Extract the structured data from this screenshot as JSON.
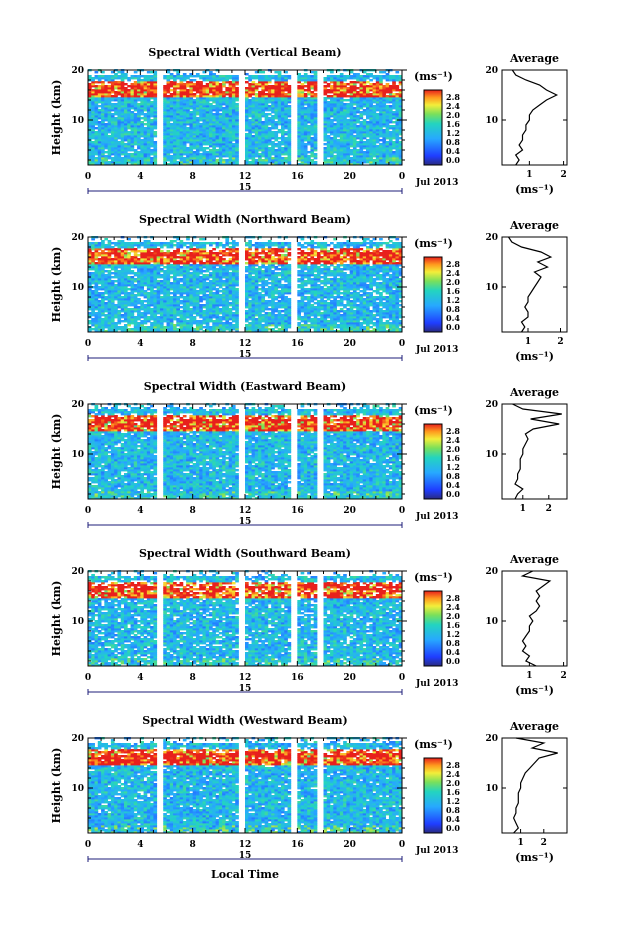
{
  "chart_data": [
    {
      "type": "heatmap",
      "title": "Spectral Width (Vertical Beam)",
      "ylabel": "Height (km)",
      "yticks": [
        "20",
        "10"
      ],
      "xticks": [
        "0",
        "4",
        "8",
        "12",
        "16",
        "20",
        "0"
      ],
      "date_day": "15",
      "date_label": "Jul 2013",
      "xlim": [
        0,
        24
      ],
      "ylim": [
        1,
        20
      ],
      "gaps": [
        [
          5.2,
          5.8
        ],
        [
          11.6,
          12.1
        ],
        [
          15.5,
          15.9
        ],
        [
          17.6,
          17.9
        ]
      ],
      "colorbar": {
        "unit": "(ms⁻¹)",
        "ticks": [
          "2.8",
          "2.4",
          "2.0",
          "1.6",
          "1.2",
          "0.8",
          "0.4",
          "0.0"
        ],
        "range": [
          0,
          2.8
        ]
      },
      "average": {
        "title": "Average",
        "ylabel": "(ms⁻¹)",
        "xticks": [
          "1",
          "2"
        ],
        "yticks": [
          "20",
          "10"
        ],
        "xlim": [
          0.2,
          2.1
        ],
        "height": [
          1,
          2,
          3,
          4,
          5,
          6,
          7,
          8,
          9,
          10,
          11,
          12,
          13,
          14,
          15,
          16,
          17,
          18,
          19,
          20
        ],
        "value": [
          0.6,
          0.7,
          0.6,
          0.8,
          0.7,
          0.8,
          0.8,
          0.9,
          0.9,
          1.0,
          1.0,
          1.1,
          1.3,
          1.5,
          1.8,
          1.5,
          1.3,
          0.9,
          0.6,
          0.5
        ]
      }
    },
    {
      "type": "heatmap",
      "title": "Spectral Width (Northward Beam)",
      "ylabel": "Height (km)",
      "yticks": [
        "20",
        "10"
      ],
      "xticks": [
        "0",
        "4",
        "8",
        "12",
        "16",
        "20",
        "0"
      ],
      "date_day": "15",
      "date_label": "Jul 2013",
      "xlim": [
        0,
        24
      ],
      "ylim": [
        1,
        20
      ],
      "gaps": [
        [
          11.6,
          12.1
        ],
        [
          15.5,
          15.9
        ]
      ],
      "colorbar": {
        "unit": "(ms⁻¹)",
        "ticks": [
          "2.8",
          "2.4",
          "2.0",
          "1.6",
          "1.2",
          "0.8",
          "0.4",
          "0.0"
        ],
        "range": [
          0,
          2.8
        ]
      },
      "average": {
        "title": "Average",
        "ylabel": "(ms⁻¹)",
        "xticks": [
          "1",
          "2"
        ],
        "yticks": [
          "20",
          "10"
        ],
        "xlim": [
          0.2,
          2.2
        ],
        "height": [
          1,
          2,
          3,
          4,
          5,
          6,
          7,
          8,
          9,
          10,
          11,
          12,
          13,
          14,
          15,
          16,
          17,
          18,
          19,
          20
        ],
        "value": [
          0.8,
          0.9,
          0.8,
          1.0,
          1.0,
          0.9,
          1.0,
          1.0,
          1.1,
          1.2,
          1.3,
          1.4,
          1.2,
          1.6,
          1.3,
          1.7,
          1.4,
          0.8,
          0.5,
          0.4
        ]
      }
    },
    {
      "type": "heatmap",
      "title": "Spectral Width (Eastward Beam)",
      "ylabel": "Height (km)",
      "yticks": [
        "20",
        "10"
      ],
      "xticks": [
        "0",
        "4",
        "8",
        "12",
        "16",
        "20",
        "0"
      ],
      "date_day": "15",
      "date_label": "Jul 2013",
      "xlim": [
        0,
        24
      ],
      "ylim": [
        1,
        20
      ],
      "gaps": [
        [
          5.2,
          5.8
        ],
        [
          11.6,
          12.1
        ],
        [
          15.5,
          15.9
        ],
        [
          17.6,
          17.9
        ]
      ],
      "colorbar": {
        "unit": "(ms⁻¹)",
        "ticks": [
          "2.8",
          "2.4",
          "2.0",
          "1.6",
          "1.2",
          "0.8",
          "0.4",
          "0.0"
        ],
        "range": [
          0,
          2.8
        ]
      },
      "average": {
        "title": "Average",
        "ylabel": "",
        "xticks": [
          "1",
          "2"
        ],
        "yticks": [
          "20",
          "10"
        ],
        "xlim": [
          0.2,
          2.7
        ],
        "height": [
          1,
          2,
          3,
          4,
          5,
          6,
          7,
          8,
          9,
          10,
          11,
          12,
          13,
          14,
          15,
          16,
          17,
          18,
          19,
          20
        ],
        "value": [
          0.7,
          0.8,
          1.0,
          0.7,
          0.8,
          0.8,
          0.9,
          0.9,
          0.9,
          1.0,
          1.0,
          1.1,
          1.2,
          1.1,
          1.4,
          2.4,
          1.3,
          2.5,
          1.0,
          0.6
        ]
      }
    },
    {
      "type": "heatmap",
      "title": "Spectral Width (Southward Beam)",
      "ylabel": "Height (km)",
      "yticks": [
        "20",
        "10"
      ],
      "xticks": [
        "0",
        "4",
        "8",
        "12",
        "16",
        "20",
        "0"
      ],
      "date_day": "15",
      "date_label": "Jul 2013",
      "xlim": [
        0,
        24
      ],
      "ylim": [
        1,
        20
      ],
      "gaps": [
        [
          5.2,
          5.8
        ],
        [
          11.6,
          12.1
        ],
        [
          15.5,
          15.9
        ],
        [
          17.6,
          17.9
        ]
      ],
      "colorbar": {
        "unit": "(ms⁻¹)",
        "ticks": [
          "2.8",
          "2.4",
          "2.0",
          "1.6",
          "1.2",
          "0.8",
          "0.4",
          "0.0"
        ],
        "range": [
          0,
          2.8
        ]
      },
      "average": {
        "title": "Average",
        "ylabel": "(ms⁻¹)",
        "xticks": [
          "1",
          "2"
        ],
        "yticks": [
          "20",
          "10"
        ],
        "xlim": [
          0.2,
          2.1
        ],
        "height": [
          1,
          2,
          3,
          4,
          5,
          6,
          7,
          8,
          9,
          10,
          11,
          12,
          13,
          14,
          15,
          16,
          17,
          18,
          19,
          20
        ],
        "value": [
          1.2,
          0.9,
          1.0,
          0.8,
          0.9,
          0.8,
          0.9,
          1.0,
          1.0,
          1.1,
          1.0,
          1.2,
          1.3,
          1.2,
          1.3,
          1.2,
          1.4,
          1.6,
          0.8,
          1.1
        ]
      }
    },
    {
      "type": "heatmap",
      "title": "Spectral Width (Westward Beam)",
      "ylabel": "Height (km)",
      "yticks": [
        "20",
        "10"
      ],
      "xticks": [
        "0",
        "4",
        "8",
        "12",
        "16",
        "20",
        "0"
      ],
      "date_day": "15",
      "date_label": "Jul 2013",
      "xlabel": "Local Time",
      "xlim": [
        0,
        24
      ],
      "ylim": [
        1,
        20
      ],
      "gaps": [
        [
          5.2,
          5.8
        ],
        [
          11.6,
          12.1
        ],
        [
          15.5,
          15.9
        ],
        [
          17.6,
          17.9
        ]
      ],
      "colorbar": {
        "unit": "(ms⁻¹)",
        "ticks": [
          "2.8",
          "2.4",
          "2.0",
          "1.6",
          "1.2",
          "0.8",
          "0.4",
          "0.0"
        ],
        "range": [
          0,
          2.8
        ]
      },
      "average": {
        "title": "Average",
        "ylabel": "(ms⁻¹)",
        "xticks": [
          "1",
          "2"
        ],
        "yticks": [
          "20",
          "10"
        ],
        "xlim": [
          0.2,
          3.0
        ],
        "height": [
          1,
          2,
          3,
          4,
          5,
          6,
          7,
          8,
          9,
          10,
          11,
          12,
          13,
          14,
          15,
          16,
          17,
          18,
          19,
          20
        ],
        "value": [
          0.7,
          0.9,
          0.8,
          0.7,
          0.8,
          0.8,
          0.9,
          0.9,
          0.9,
          1.0,
          1.0,
          1.1,
          1.2,
          1.4,
          1.6,
          1.8,
          2.6,
          1.5,
          2.0,
          0.8
        ]
      }
    }
  ]
}
